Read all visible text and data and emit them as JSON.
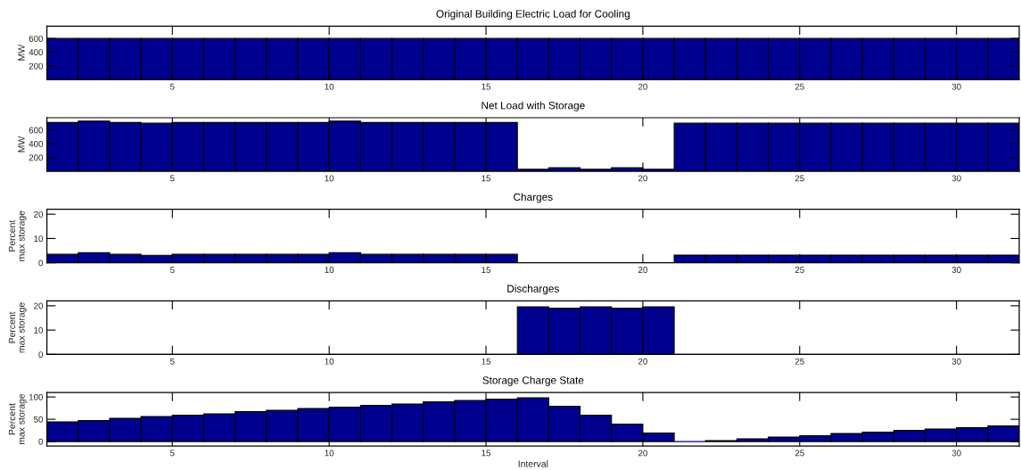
{
  "chart_data": [
    {
      "type": "histogram",
      "title": "Original Building Electric Load for Cooling",
      "ylabel": "MW",
      "color": "#00008f",
      "bins": [
        1,
        2,
        3,
        4,
        5,
        6,
        7,
        8,
        9,
        10,
        11,
        12,
        13,
        14,
        15,
        16,
        17,
        18,
        19,
        20,
        21,
        22,
        23,
        24,
        25,
        26,
        27,
        28,
        29,
        30,
        31,
        32
      ],
      "values": [
        600,
        600,
        600,
        600,
        600,
        600,
        600,
        600,
        600,
        600,
        600,
        600,
        600,
        600,
        600,
        600,
        600,
        600,
        600,
        600,
        600,
        600,
        600,
        600,
        600,
        600,
        600,
        600,
        600,
        600,
        600
      ],
      "xlim": [
        1,
        32
      ],
      "xticks": [
        5,
        10,
        15,
        20,
        25,
        30
      ],
      "ylim": [
        0,
        780
      ],
      "yticks": [
        200,
        400,
        600
      ]
    },
    {
      "type": "histogram",
      "title": "Net Load with Storage",
      "ylabel": "MW",
      "color": "#00008f",
      "bins": [
        1,
        2,
        3,
        4,
        5,
        6,
        7,
        8,
        9,
        10,
        11,
        12,
        13,
        14,
        15,
        16,
        17,
        18,
        19,
        20,
        21,
        22,
        23,
        24,
        25,
        26,
        27,
        28,
        29,
        30,
        31,
        32
      ],
      "values": [
        710,
        730,
        710,
        700,
        710,
        710,
        710,
        710,
        710,
        730,
        710,
        710,
        710,
        710,
        710,
        30,
        50,
        30,
        50,
        30,
        700,
        700,
        700,
        700,
        700,
        700,
        700,
        700,
        700,
        700,
        700
      ],
      "xlim": [
        1,
        32
      ],
      "xticks": [
        5,
        10,
        15,
        20,
        25,
        30
      ],
      "ylim": [
        0,
        780
      ],
      "yticks": [
        200,
        400,
        600
      ]
    },
    {
      "type": "histogram",
      "title": "Charges",
      "ylabel": "Percent\nmax storage",
      "color": "#00008f",
      "bins": [
        1,
        2,
        3,
        4,
        5,
        6,
        7,
        8,
        9,
        10,
        11,
        12,
        13,
        14,
        15,
        16,
        17,
        18,
        19,
        20,
        21,
        22,
        23,
        24,
        25,
        26,
        27,
        28,
        29,
        30,
        31,
        32
      ],
      "values": [
        3.5,
        4.2,
        3.5,
        3.1,
        3.5,
        3.5,
        3.5,
        3.5,
        3.5,
        4.2,
        3.5,
        3.5,
        3.5,
        3.5,
        3.5,
        0,
        0,
        0,
        0,
        0,
        3.2,
        3.2,
        3.2,
        3.2,
        3.2,
        3.2,
        3.2,
        3.2,
        3.2,
        3.2,
        3.2
      ],
      "xlim": [
        1,
        32
      ],
      "xticks": [
        5,
        10,
        15,
        20,
        25,
        30
      ],
      "ylim": [
        0,
        22
      ],
      "yticks": [
        0,
        10,
        20
      ]
    },
    {
      "type": "histogram",
      "title": "Discharges",
      "ylabel": "Percent\nmax storage",
      "color": "#00008f",
      "bins": [
        1,
        2,
        3,
        4,
        5,
        6,
        7,
        8,
        9,
        10,
        11,
        12,
        13,
        14,
        15,
        16,
        17,
        18,
        19,
        20,
        21,
        22,
        23,
        24,
        25,
        26,
        27,
        28,
        29,
        30,
        31,
        32
      ],
      "values": [
        0,
        0,
        0,
        0,
        0,
        0,
        0,
        0,
        0,
        0,
        0,
        0,
        0,
        0,
        0,
        19.6,
        19.0,
        19.6,
        19.0,
        19.6,
        0,
        0,
        0,
        0,
        0,
        0,
        0,
        0,
        0,
        0,
        0
      ],
      "xlim": [
        1,
        32
      ],
      "xticks": [
        5,
        10,
        15,
        20,
        25,
        30
      ],
      "ylim": [
        0,
        22
      ],
      "yticks": [
        0,
        10,
        20
      ]
    },
    {
      "type": "histogram",
      "title": "Storage Charge State",
      "ylabel": "Percent\nmax storage",
      "xlabel": "Interval",
      "color": "#00008f",
      "bins": [
        1,
        2,
        3,
        4,
        5,
        6,
        7,
        8,
        9,
        10,
        11,
        12,
        13,
        14,
        15,
        16,
        17,
        18,
        19,
        20,
        21,
        22,
        23,
        24,
        25,
        26,
        27,
        28,
        29,
        30,
        31,
        32
      ],
      "values": [
        44,
        47,
        52,
        56,
        59,
        62,
        67,
        70,
        74,
        77,
        81,
        84,
        89,
        92,
        95,
        98,
        79,
        59,
        39,
        19,
        0,
        2,
        6,
        10,
        13,
        18,
        21,
        25,
        28,
        31,
        35
      ],
      "xlim": [
        1,
        32
      ],
      "xticks": [
        5,
        10,
        15,
        20,
        25,
        30
      ],
      "ylim": [
        -10,
        110
      ],
      "yticks": [
        0,
        50,
        100
      ]
    }
  ]
}
